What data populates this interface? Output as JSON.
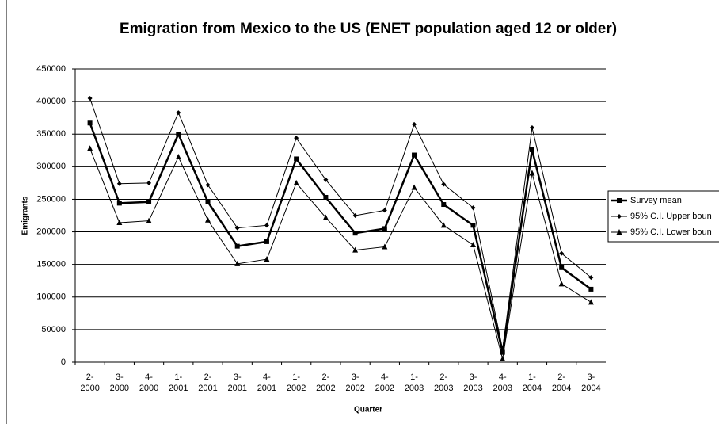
{
  "chart_data": {
    "type": "line",
    "title": "Emigration from Mexico to the US (ENET population aged 12 or older)",
    "x_label": "Quarter",
    "y_label": "Emigrants",
    "categories": [
      [
        "2-",
        "2000"
      ],
      [
        "3-",
        "2000"
      ],
      [
        "4-",
        "2000"
      ],
      [
        "1-",
        "2001"
      ],
      [
        "2-",
        "2001"
      ],
      [
        "3-",
        "2001"
      ],
      [
        "4-",
        "2001"
      ],
      [
        "1-",
        "2002"
      ],
      [
        "2-",
        "2002"
      ],
      [
        "3-",
        "2002"
      ],
      [
        "4-",
        "2002"
      ],
      [
        "1-",
        "2003"
      ],
      [
        "2-",
        "2003"
      ],
      [
        "3-",
        "2003"
      ],
      [
        "4-",
        "2003"
      ],
      [
        "1-",
        "2004"
      ],
      [
        "2-",
        "2004"
      ],
      [
        "3-",
        "2004"
      ]
    ],
    "series": [
      {
        "name": "Survey mean",
        "color": "#000000",
        "marker": "square",
        "values": [
          367000,
          244000,
          246000,
          350000,
          246000,
          178000,
          185000,
          312000,
          253000,
          198000,
          205000,
          318000,
          242000,
          210000,
          15000,
          326000,
          145000,
          112000
        ]
      },
      {
        "name": "95% C.I. Upper boun",
        "color": "#000000",
        "marker": "diamond",
        "values": [
          405000,
          274000,
          275000,
          383000,
          272000,
          206000,
          210000,
          344000,
          280000,
          225000,
          233000,
          365000,
          273000,
          237000,
          20000,
          360000,
          167000,
          130000
        ]
      },
      {
        "name": "95% C.I. Lower boun",
        "color": "#000000",
        "marker": "triangle",
        "values": [
          328000,
          214000,
          217000,
          315000,
          218000,
          151000,
          158000,
          275000,
          222000,
          172000,
          177000,
          268000,
          210000,
          180000,
          5000,
          290000,
          120000,
          92000
        ]
      }
    ],
    "ylim": [
      0,
      450000
    ],
    "yticks": [
      0,
      50000,
      100000,
      150000,
      200000,
      250000,
      300000,
      350000,
      400000,
      450000
    ],
    "grid": true,
    "legend": "right"
  }
}
